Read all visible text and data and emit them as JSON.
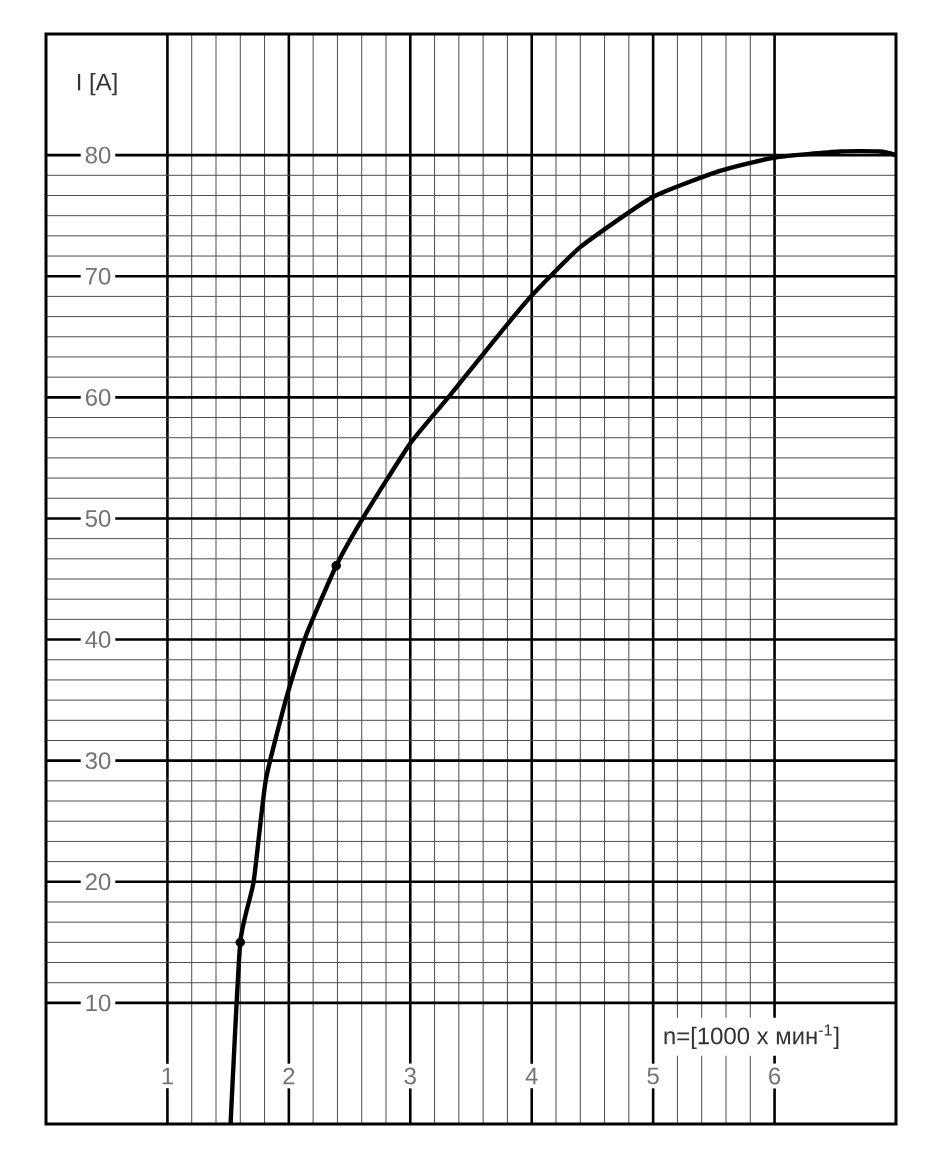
{
  "chart_data": {
    "type": "line",
    "xlabel": "n=[1000 x мин$^{-1}$]",
    "ylabel": "I [A]",
    "xlim": [
      0,
      7
    ],
    "ylim": [
      0,
      90
    ],
    "xticks": [
      1,
      2,
      3,
      4,
      5,
      6
    ],
    "yticks": [
      10,
      20,
      30,
      40,
      50,
      60,
      70,
      80
    ],
    "grid": true,
    "line_style": "solid",
    "series": [
      {
        "color": "#000000",
        "marker": "none",
        "x": [
          1.52,
          1.6,
          1.71,
          1.81,
          1.98,
          2.14,
          2.39,
          2.62,
          3.0,
          3.33,
          3.74,
          4.0,
          4.4,
          4.99,
          5.55,
          6.0,
          6.54,
          6.87,
          7.0
        ],
        "values": [
          0,
          15,
          20,
          28.4,
          35.2,
          40.3,
          46.1,
          50.2,
          56.2,
          60.2,
          65.3,
          68.4,
          72.4,
          76.5,
          78.7,
          79.8,
          80.3,
          80.3,
          80.0
        ]
      },
      {
        "type": "scatter",
        "color": "#000000",
        "marker": "circle",
        "x": [
          1.6,
          2.39
        ],
        "values": [
          15,
          46.1
        ]
      }
    ]
  }
}
